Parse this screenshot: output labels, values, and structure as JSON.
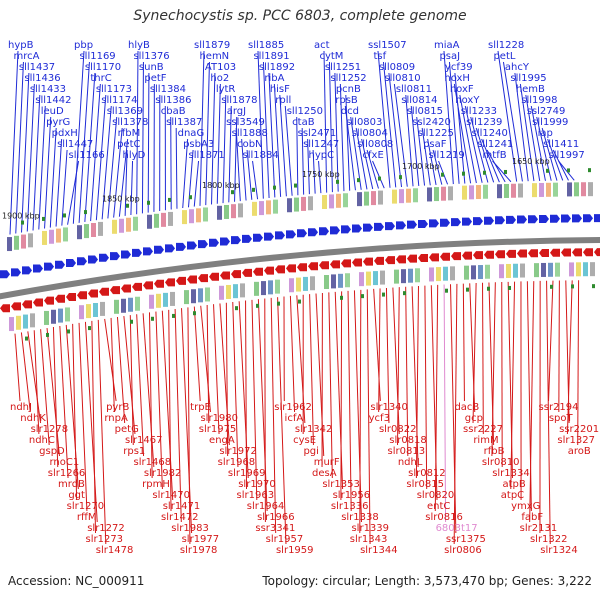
{
  "title": "Synechocystis sp. PCC 6803, complete genome",
  "footer": {
    "accession": "Accession: NC_000911",
    "summary": "Topology: circular; Length: 3,573,470 bp; Genes: 3,222"
  },
  "colors": {
    "forward": "#1f2bd6",
    "reverse": "#d41818",
    "backbone": "#808080",
    "highlight": "#e08ad0"
  },
  "scale_ticks": [
    "1900 kbp",
    "1850 kbp",
    "1800 kbp",
    "1750 kbp",
    "1700 kbp",
    "1650 kbp"
  ],
  "forward_genes": [
    "hypB",
    "mrcA",
    "sll1437",
    "sll1436",
    "sll1433",
    "sll1442",
    "leuD",
    "pyrG",
    "pdxH",
    "sll1447",
    "sll1166",
    "pbp",
    "sll1169",
    "sll1170",
    "thrC",
    "sll1173",
    "sll1174",
    "sll1369",
    "sll1378",
    "rfbM",
    "petC",
    "hlyD",
    "hlyB",
    "sll1376",
    "sunB",
    "petF",
    "sll1384",
    "sll1386",
    "cbaB",
    "sll1387",
    "dnaG",
    "psbA3",
    "sll1871",
    "sll1879",
    "hemN",
    "AT103",
    "ho2",
    "lytR",
    "sll1878",
    "argJ",
    "ssl3549",
    "sll1888",
    "cobN",
    "sll1884",
    "sll1885",
    "sll1891",
    "sll1892",
    "ribA",
    "hisF",
    "rpll",
    "sll1250",
    "ctaB",
    "ssl2471",
    "sll1247",
    "hypC",
    "act",
    "cytM",
    "sll1251",
    "sll1252",
    "pcnB",
    "rpsB",
    "dcd",
    "sll0803",
    "sll0804",
    "sll0808",
    "cfxE",
    "ssl1507",
    "tsf",
    "sll0809",
    "sll0810",
    "sll0811",
    "sll0814",
    "sll0815",
    "ssl2420",
    "sll1225",
    "psaF",
    "sll1219",
    "miaA",
    "psaJ",
    "ycf39",
    "hoxH",
    "hoxF",
    "hoxY",
    "sll1233",
    "sll1239",
    "sll1240",
    "sll1241",
    "mtfB",
    "sll1228",
    "petL",
    "ahcY",
    "sll1995",
    "hemB",
    "sll1998",
    "ssl2749",
    "sll1999",
    "iap",
    "sll1411",
    "sll1997"
  ],
  "reverse_genes": [
    "ndhJ",
    "ndhK",
    "slr1278",
    "ndhC",
    "gspD",
    "rnoC1",
    "slr1266",
    "mrdB",
    "ggt",
    "slr1270",
    "rffM",
    "slr1272",
    "slr1273",
    "slr1478",
    "pyrB",
    "rnpA",
    "petG",
    "slr1467",
    "rps1",
    "slr1468",
    "slr1982",
    "rpmH",
    "slr1470",
    "slr1471",
    "slr1472",
    "slr1983",
    "slr1977",
    "slr1978",
    "trpE",
    "slr1980",
    "slr1975",
    "engA",
    "slr1972",
    "slr1968",
    "slr1969",
    "slr1970",
    "slr1963",
    "slr1964",
    "slr1966",
    "ssr3341",
    "slr1957",
    "slr1959",
    "slr1962",
    "icfA",
    "slr1342",
    "cysE",
    "pgi",
    "murF",
    "desA",
    "slr1353",
    "slr1956",
    "slr1336",
    "slr1338",
    "slr1339",
    "slr1343",
    "slr1344",
    "slr1340",
    "ycf3",
    "slr0822",
    "slr0818",
    "slr0813",
    "ndhL",
    "slr0812",
    "slr0815",
    "slr0820",
    "entC",
    "slr0816",
    "6803t17",
    "ssr1375",
    "slr0806",
    "dacB",
    "gcp",
    "ssr2227",
    "rimM",
    "rfbB",
    "slr0810",
    "slr1334",
    "atpB",
    "atpC",
    "ymxG",
    "fabF",
    "slr2131",
    "slr1322",
    "slr1324",
    "ssr2194",
    "spoT",
    "ssr2201",
    "slr1327",
    "aroB"
  ],
  "highlight_gene": "6803t17"
}
